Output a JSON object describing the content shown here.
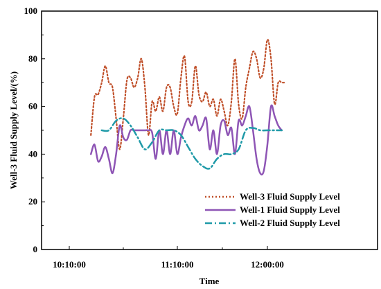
{
  "chart_data": {
    "type": "line",
    "title": "",
    "xlabel": "Time",
    "ylabel": "Well-3 Fluid Supply Level/(%)",
    "x_ticks": [
      "10:10:00",
      "11:10:00",
      "12:00:00"
    ],
    "y_ticks": [
      "0",
      "20",
      "40",
      "60",
      "80",
      "100"
    ],
    "ylim": [
      0,
      100
    ],
    "grid": false,
    "legend_position": "bottom-right",
    "series": [
      {
        "name": "Well-3 Fluid Supply Level",
        "color": "#c0502a",
        "style": "dotted",
        "x": [
          "10:22:00",
          "10:24:00",
          "10:26:00",
          "10:28:00",
          "10:30:00",
          "10:32:00",
          "10:34:00",
          "10:36:00",
          "10:38:00",
          "10:40:00",
          "10:42:00",
          "10:44:00",
          "10:46:00",
          "10:48:00",
          "10:50:00",
          "10:52:00",
          "10:54:00",
          "10:56:00",
          "10:58:00",
          "11:00:00",
          "11:02:00",
          "11:04:00",
          "11:06:00",
          "11:08:00",
          "11:10:00",
          "11:12:00",
          "11:14:00",
          "11:16:00",
          "11:18:00",
          "11:20:00",
          "11:22:00",
          "11:24:00",
          "11:26:00",
          "11:28:00",
          "11:30:00",
          "11:32:00",
          "11:34:00",
          "11:36:00",
          "11:38:00",
          "11:40:00",
          "11:42:00",
          "11:44:00",
          "11:46:00",
          "11:48:00",
          "11:50:00",
          "11:52:00",
          "11:54:00",
          "11:56:00",
          "11:58:00",
          "12:00:00",
          "12:02:00",
          "12:04:00",
          "12:06:00",
          "12:08:00",
          "12:10:00"
        ],
        "values": [
          48,
          64,
          65,
          70,
          77,
          70,
          68,
          55,
          42,
          55,
          71,
          72,
          68,
          72,
          80,
          68,
          48,
          62,
          58,
          64,
          58,
          68,
          68,
          60,
          57,
          72,
          81,
          62,
          62,
          77,
          65,
          62,
          66,
          60,
          63,
          56,
          63,
          58,
          52,
          62,
          80,
          61,
          55,
          68,
          76,
          83,
          80,
          72,
          76,
          88,
          80,
          61,
          70,
          70,
          70
        ]
      },
      {
        "name": "Well-1 Fluid Supply Level",
        "color": "#8e55b5",
        "style": "solid",
        "x": [
          "10:22:00",
          "10:24:00",
          "10:26:00",
          "10:28:00",
          "10:30:00",
          "10:32:00",
          "10:34:00",
          "10:36:00",
          "10:38:00",
          "10:40:00",
          "10:42:00",
          "10:44:00",
          "10:46:00",
          "10:48:00",
          "10:50:00",
          "10:52:00",
          "10:54:00",
          "10:56:00",
          "10:58:00",
          "11:00:00",
          "11:02:00",
          "11:04:00",
          "11:06:00",
          "11:08:00",
          "11:10:00",
          "11:12:00",
          "11:14:00",
          "11:16:00",
          "11:18:00",
          "11:20:00",
          "11:22:00",
          "11:24:00",
          "11:26:00",
          "11:28:00",
          "11:30:00",
          "11:32:00",
          "11:34:00",
          "11:36:00",
          "11:38:00",
          "11:40:00",
          "11:42:00",
          "11:44:00",
          "11:46:00",
          "11:48:00",
          "11:50:00",
          "11:52:00",
          "11:54:00",
          "11:56:00",
          "11:58:00",
          "12:00:00",
          "12:02:00",
          "12:04:00",
          "12:06:00",
          "12:08:00"
        ],
        "values": [
          40,
          44,
          37,
          39,
          43,
          38,
          32,
          40,
          52,
          47,
          46,
          50,
          50,
          50,
          50,
          50,
          50,
          49,
          38,
          50,
          40,
          50,
          40,
          50,
          40,
          47,
          52,
          55,
          52,
          56,
          50,
          52,
          55,
          42,
          50,
          40,
          52,
          54,
          48,
          51,
          40,
          54,
          52,
          56,
          60,
          50,
          38,
          32,
          33,
          44,
          60,
          56,
          52,
          50
        ]
      },
      {
        "name": "Well-2 Fluid Supply Level",
        "color": "#1f9aa8",
        "style": "dashdot",
        "x": [
          "10:28:00",
          "10:32:00",
          "10:36:00",
          "10:40:00",
          "10:44:00",
          "10:48:00",
          "10:52:00",
          "10:56:00",
          "11:00:00",
          "11:04:00",
          "11:08:00",
          "11:12:00",
          "11:16:00",
          "11:20:00",
          "11:24:00",
          "11:28:00",
          "11:32:00",
          "11:36:00",
          "11:40:00",
          "11:44:00",
          "11:48:00",
          "11:52:00",
          "11:56:00",
          "12:00:00",
          "12:04:00",
          "12:08:00"
        ],
        "values": [
          50,
          50,
          54,
          55,
          52,
          47,
          42,
          45,
          50,
          50,
          50,
          48,
          43,
          38,
          35,
          34,
          38,
          40,
          40,
          42,
          50,
          51,
          50,
          50,
          50,
          50
        ]
      }
    ]
  }
}
